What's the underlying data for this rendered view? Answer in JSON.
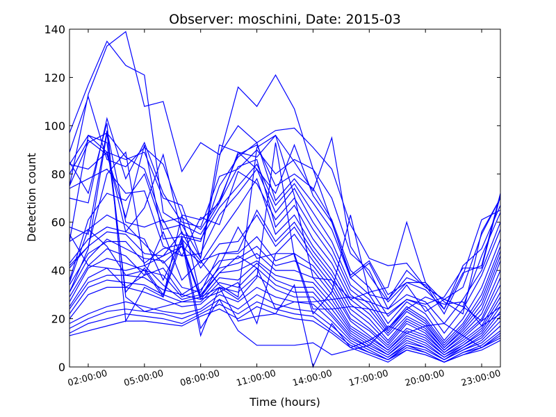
{
  "chart_data": {
    "type": "line",
    "title": "Observer: moschini, Date: 2015-03",
    "xlabel": "Time (hours)",
    "ylabel": "Detection count",
    "x": [
      1,
      2,
      3,
      4,
      5,
      6,
      7,
      8,
      9,
      10,
      11,
      12,
      13,
      14,
      15,
      16,
      17,
      18,
      19,
      20,
      21,
      22,
      23,
      24
    ],
    "xtick_values": [
      2,
      5,
      8,
      11,
      14,
      17,
      20,
      23
    ],
    "xtick_labels": [
      "02:00:00",
      "05:00:00",
      "08:00:00",
      "11:00:00",
      "14:00:00",
      "17:00:00",
      "20:00:00",
      "23:00:00"
    ],
    "xlim": [
      1,
      24
    ],
    "ylim": [
      0,
      140
    ],
    "yticks": [
      0,
      20,
      40,
      60,
      80,
      100,
      120,
      140
    ],
    "grid": false,
    "line_color": "#0000ff",
    "series": [
      {
        "values": [
          97,
          117,
          135,
          125,
          121,
          64,
          59,
          45,
          87,
          116,
          108,
          121,
          107,
          82,
          60,
          38,
          44,
          30,
          35,
          32,
          24,
          39,
          42,
          72
        ]
      },
      {
        "values": [
          75,
          113,
          133,
          139,
          108,
          110,
          81,
          93,
          88,
          100,
          93,
          98,
          99,
          91,
          82,
          59,
          45,
          42,
          43,
          33,
          28,
          33,
          55,
          70
        ]
      },
      {
        "values": [
          89,
          112,
          86,
          83,
          91,
          84,
          63,
          61,
          68,
          89,
          87,
          96,
          85,
          73,
          95,
          50,
          38,
          27,
          35,
          35,
          24,
          42,
          49,
          67
        ]
      },
      {
        "values": [
          84,
          96,
          89,
          86,
          89,
          70,
          67,
          45,
          92,
          89,
          82,
          72,
          92,
          71,
          60,
          37,
          43,
          28,
          37,
          34,
          22,
          38,
          61,
          65
        ]
      },
      {
        "values": [
          70,
          68,
          103,
          78,
          93,
          72,
          60,
          58,
          79,
          82,
          90,
          80,
          86,
          82,
          70,
          47,
          40,
          24,
          30,
          27,
          18,
          28,
          40,
          60
        ]
      },
      {
        "values": [
          75,
          93,
          97,
          87,
          82,
          60,
          62,
          57,
          69,
          88,
          92,
          75,
          80,
          74,
          61,
          40,
          33,
          21,
          28,
          25,
          14,
          24,
          38,
          57
        ]
      },
      {
        "values": [
          80,
          94,
          88,
          62,
          92,
          53,
          54,
          52,
          75,
          87,
          93,
          69,
          78,
          68,
          57,
          37,
          30,
          18,
          27,
          22,
          11,
          20,
          33,
          53
        ]
      },
      {
        "values": [
          84,
          82,
          89,
          56,
          66,
          88,
          55,
          53,
          66,
          75,
          84,
          67,
          76,
          64,
          52,
          34,
          28,
          16,
          25,
          20,
          10,
          18,
          30,
          50
        ]
      },
      {
        "values": [
          58,
          55,
          98,
          60,
          58,
          61,
          46,
          47,
          63,
          72,
          82,
          64,
          74,
          60,
          49,
          32,
          26,
          15,
          24,
          19,
          9,
          17,
          28,
          48
        ]
      },
      {
        "values": [
          74,
          78,
          82,
          72,
          73,
          50,
          46,
          62,
          59,
          81,
          76,
          61,
          70,
          57,
          46,
          30,
          24,
          14,
          23,
          18,
          8,
          16,
          26,
          46
        ]
      },
      {
        "values": [
          36,
          61,
          72,
          69,
          80,
          57,
          59,
          55,
          68,
          83,
          86,
          58,
          67,
          53,
          43,
          28,
          22,
          13,
          21,
          17,
          8,
          15,
          24,
          44
        ]
      },
      {
        "values": [
          52,
          57,
          63,
          59,
          51,
          43,
          50,
          43,
          55,
          66,
          78,
          55,
          63,
          50,
          40,
          26,
          20,
          11,
          20,
          16,
          7,
          14,
          22,
          40
        ]
      },
      {
        "values": [
          43,
          53,
          58,
          56,
          53,
          36,
          53,
          44,
          47,
          48,
          65,
          52,
          60,
          48,
          38,
          24,
          18,
          10,
          19,
          15,
          7,
          13,
          20,
          37
        ]
      },
      {
        "values": [
          41,
          50,
          56,
          55,
          47,
          46,
          56,
          41,
          51,
          52,
          63,
          50,
          58,
          46,
          36,
          22,
          16,
          9,
          18,
          14,
          6,
          12,
          19,
          34
        ]
      },
      {
        "values": [
          34,
          47,
          52,
          52,
          43,
          49,
          51,
          29,
          42,
          58,
          45,
          47,
          55,
          44,
          34,
          20,
          15,
          8,
          16,
          13,
          6,
          11,
          17,
          31
        ]
      },
      {
        "values": [
          31,
          45,
          53,
          49,
          45,
          44,
          33,
          31,
          47,
          47,
          54,
          44,
          47,
          42,
          32,
          19,
          13,
          7,
          15,
          12,
          5,
          10,
          16,
          29
        ]
      },
      {
        "values": [
          29,
          42,
          49,
          46,
          38,
          41,
          30,
          35,
          44,
          45,
          50,
          42,
          44,
          40,
          30,
          17,
          12,
          7,
          14,
          11,
          5,
          9,
          15,
          27
        ]
      },
      {
        "values": [
          27,
          41,
          45,
          43,
          40,
          38,
          29,
          32,
          41,
          43,
          47,
          40,
          40,
          37,
          28,
          16,
          11,
          6,
          13,
          10,
          4,
          9,
          14,
          25
        ]
      },
      {
        "values": [
          25,
          37,
          41,
          40,
          42,
          34,
          28,
          30,
          39,
          40,
          44,
          38,
          36,
          35,
          26,
          15,
          10,
          5,
          12,
          9,
          4,
          8,
          13,
          23
        ]
      },
      {
        "values": [
          24,
          35,
          38,
          38,
          37,
          32,
          30,
          28,
          37,
          36,
          43,
          36,
          33,
          33,
          24,
          14,
          9,
          5,
          11,
          8,
          3,
          8,
          12,
          21
        ]
      },
      {
        "values": [
          22,
          33,
          36,
          35,
          34,
          30,
          27,
          27,
          35,
          33,
          41,
          34,
          31,
          31,
          22,
          13,
          8,
          4,
          10,
          8,
          3,
          7,
          11,
          19
        ]
      },
      {
        "values": [
          20,
          30,
          33,
          33,
          31,
          28,
          25,
          26,
          33,
          31,
          38,
          32,
          29,
          29,
          21,
          12,
          8,
          4,
          9,
          7,
          3,
          7,
          10,
          17
        ]
      },
      {
        "values": [
          18,
          22,
          25,
          27,
          25,
          23,
          22,
          24,
          30,
          27,
          33,
          29,
          27,
          26,
          19,
          11,
          7,
          3,
          9,
          6,
          2,
          6,
          9,
          15
        ]
      },
      {
        "values": [
          16,
          20,
          23,
          24,
          23,
          22,
          20,
          23,
          28,
          24,
          30,
          26,
          24,
          23,
          17,
          10,
          6,
          3,
          8,
          6,
          2,
          6,
          8,
          13
        ]
      },
      {
        "values": [
          14,
          18,
          20,
          22,
          21,
          20,
          18,
          22,
          26,
          22,
          27,
          24,
          22,
          21,
          15,
          9,
          6,
          3,
          7,
          5,
          2,
          5,
          8,
          12
        ]
      },
      {
        "values": [
          13,
          15,
          17,
          19,
          19,
          18,
          17,
          21,
          24,
          20,
          25,
          22,
          20,
          19,
          14,
          8,
          5,
          2,
          7,
          5,
          2,
          5,
          7,
          11
        ]
      },
      {
        "values": [
          52,
          96,
          93,
          31,
          41,
          30,
          54,
          16,
          28,
          15,
          9,
          9,
          9,
          10,
          5,
          7,
          9,
          17,
          14,
          17,
          18,
          13,
          8,
          14
        ]
      },
      {
        "values": [
          85,
          72,
          101,
          19,
          33,
          29,
          52,
          13,
          33,
          19,
          21,
          22,
          34,
          0,
          18,
          8,
          11,
          16,
          24,
          29,
          26,
          27,
          17,
          22
        ]
      },
      {
        "values": [
          31,
          49,
          97,
          29,
          23,
          25,
          27,
          29,
          39,
          46,
          41,
          24,
          27,
          27,
          28,
          29,
          27,
          24,
          34,
          23,
          28,
          25,
          19,
          25
        ]
      },
      {
        "values": [
          42,
          50,
          80,
          89,
          42,
          46,
          50,
          28,
          31,
          35,
          18,
          47,
          47,
          24,
          24,
          25,
          24,
          22,
          28,
          26,
          29,
          41,
          41,
          71
        ]
      },
      {
        "values": [
          35,
          57,
          50,
          38,
          40,
          29,
          63,
          29,
          33,
          28,
          37,
          93,
          46,
          22,
          31,
          63,
          30,
          28,
          40,
          33,
          28,
          25,
          46,
          64
        ]
      },
      {
        "values": [
          55,
          42,
          41,
          33,
          38,
          56,
          36,
          44,
          34,
          29,
          91,
          96,
          71,
          37,
          36,
          28,
          31,
          33,
          60,
          35,
          27,
          22,
          56,
          70
        ]
      }
    ]
  }
}
